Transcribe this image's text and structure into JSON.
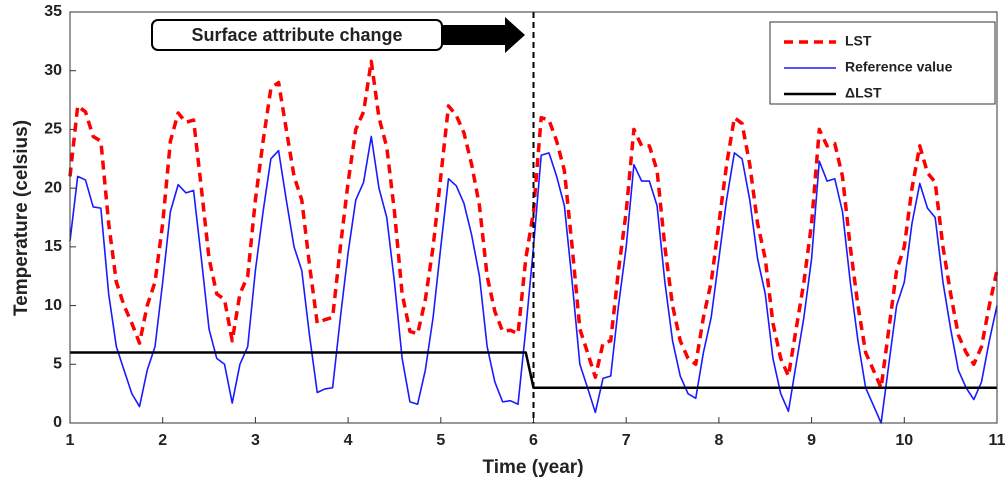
{
  "chart_data": {
    "type": "line",
    "xlabel": "Time (year)",
    "ylabel": "Temperature (celsius)",
    "xlim": [
      1,
      11
    ],
    "ylim": [
      0,
      35
    ],
    "xticks": [
      1,
      2,
      3,
      4,
      5,
      6,
      7,
      8,
      9,
      10,
      11
    ],
    "yticks": [
      0,
      5,
      10,
      15,
      20,
      25,
      30,
      35
    ],
    "annotation": {
      "text": "Surface attribute change",
      "x": 6
    },
    "legend": "upper right",
    "x": [
      1,
      1.083,
      1.167,
      1.25,
      1.333,
      1.417,
      1.5,
      1.583,
      1.667,
      1.75,
      1.833,
      1.917,
      2,
      2.083,
      2.167,
      2.25,
      2.333,
      2.417,
      2.5,
      2.583,
      2.667,
      2.75,
      2.833,
      2.917,
      3,
      3.083,
      3.167,
      3.25,
      3.333,
      3.417,
      3.5,
      3.583,
      3.667,
      3.75,
      3.833,
      3.917,
      4,
      4.083,
      4.167,
      4.25,
      4.333,
      4.417,
      4.5,
      4.583,
      4.667,
      4.75,
      4.833,
      4.917,
      5,
      5.083,
      5.167,
      5.25,
      5.333,
      5.417,
      5.5,
      5.583,
      5.667,
      5.75,
      5.833,
      5.917,
      6,
      6.083,
      6.167,
      6.25,
      6.333,
      6.417,
      6.5,
      6.583,
      6.667,
      6.75,
      6.833,
      6.917,
      7,
      7.083,
      7.167,
      7.25,
      7.333,
      7.417,
      7.5,
      7.583,
      7.667,
      7.75,
      7.833,
      7.917,
      8,
      8.083,
      8.167,
      8.25,
      8.333,
      8.417,
      8.5,
      8.583,
      8.667,
      8.75,
      8.833,
      8.917,
      9,
      9.083,
      9.167,
      9.25,
      9.333,
      9.417,
      9.5,
      9.583,
      9.667,
      9.75,
      9.833,
      9.917,
      10,
      10.083,
      10.167,
      10.25,
      10.333,
      10.417,
      10.5,
      10.583,
      10.667,
      10.75,
      10.833,
      10.917,
      11
    ],
    "series": [
      {
        "name": "LST",
        "color": "#ff0000",
        "style": "dashed",
        "width": 3.5,
        "values": [
          21,
          27,
          26.5,
          24.4,
          24,
          17,
          12,
          10,
          8.5,
          6.8,
          10,
          12,
          17,
          24,
          26.4,
          25.6,
          25.8,
          20,
          14,
          11,
          10.5,
          7,
          11,
          12.5,
          19,
          24,
          28.5,
          29,
          25,
          21,
          19,
          13.5,
          8.5,
          8.8,
          9,
          15,
          20.5,
          25,
          26.5,
          30.8,
          26,
          23.5,
          18,
          11,
          7.8,
          7.6,
          10.5,
          15,
          21,
          27,
          26.2,
          24.7,
          22,
          18.5,
          12.5,
          9.5,
          7.8,
          7.9,
          7.6,
          14,
          18,
          26,
          25.8,
          24,
          21.5,
          15,
          8,
          6,
          3.9,
          6.8,
          7,
          13,
          18,
          25,
          23.6,
          23.6,
          21.5,
          15,
          10,
          7,
          5.5,
          5,
          9,
          12,
          17,
          22,
          26,
          25.5,
          22,
          17,
          14,
          8.5,
          5.5,
          4,
          8,
          12,
          17,
          25,
          23.6,
          23.8,
          21,
          15,
          10,
          6,
          4.5,
          3,
          8,
          13,
          15,
          20,
          23.6,
          21.3,
          20.5,
          15,
          11,
          7.5,
          6,
          5,
          6.5,
          10,
          13
        ]
      },
      {
        "name": "Reference value",
        "color": "#1a1aff",
        "style": "solid",
        "width": 1.6,
        "values": [
          15.5,
          21,
          20.7,
          18.4,
          18.3,
          11,
          6.5,
          4.5,
          2.5,
          1.4,
          4.5,
          6.5,
          12,
          18,
          20.3,
          19.6,
          19.8,
          14,
          8,
          5.5,
          5,
          1.7,
          5,
          6.5,
          13,
          18,
          22.5,
          23.2,
          19,
          15,
          13,
          7.5,
          2.6,
          2.9,
          3,
          9,
          14.5,
          19,
          20.5,
          24.4,
          20,
          17.5,
          12,
          5.5,
          1.8,
          1.6,
          4.5,
          9,
          15,
          20.8,
          20.2,
          18.7,
          16,
          12.5,
          6.5,
          3.5,
          1.8,
          1.9,
          1.6,
          8,
          15,
          22.8,
          23,
          21,
          18.5,
          12,
          5,
          3,
          0.9,
          3.8,
          4,
          10,
          15,
          22,
          20.6,
          20.6,
          18.5,
          12,
          7,
          4,
          2.5,
          2.1,
          6,
          9,
          14,
          19,
          23,
          22.5,
          19,
          14,
          11,
          5.5,
          2.5,
          1,
          5,
          9,
          14,
          22.3,
          20.6,
          20.8,
          18,
          12,
          7,
          3,
          1.5,
          0,
          5,
          10,
          12,
          17,
          20.4,
          18.3,
          17.5,
          12,
          8,
          4.5,
          3,
          2,
          3.5,
          7,
          10
        ]
      },
      {
        "name": "ΔLST",
        "color": "#000000",
        "style": "solid",
        "width": 2.5,
        "values": [
          6,
          6,
          6,
          6,
          6,
          6,
          6,
          6,
          6,
          6,
          6,
          6,
          6,
          6,
          6,
          6,
          6,
          6,
          6,
          6,
          6,
          6,
          6,
          6,
          6,
          6,
          6,
          6,
          6,
          6,
          6,
          6,
          6,
          6,
          6,
          6,
          6,
          6,
          6,
          6,
          6,
          6,
          6,
          6,
          6,
          6,
          6,
          6,
          6,
          6,
          6,
          6,
          6,
          6,
          6,
          6,
          6,
          6,
          6,
          6,
          3,
          3,
          3,
          3,
          3,
          3,
          3,
          3,
          3,
          3,
          3,
          3,
          3,
          3,
          3,
          3,
          3,
          3,
          3,
          3,
          3,
          3,
          3,
          3,
          3,
          3,
          3,
          3,
          3,
          3,
          3,
          3,
          3,
          3,
          3,
          3,
          3,
          3,
          3,
          3,
          3,
          3,
          3,
          3,
          3,
          3,
          3,
          3,
          3,
          3,
          3,
          3,
          3,
          3,
          3,
          3,
          3,
          3,
          3,
          3,
          3
        ]
      }
    ]
  }
}
